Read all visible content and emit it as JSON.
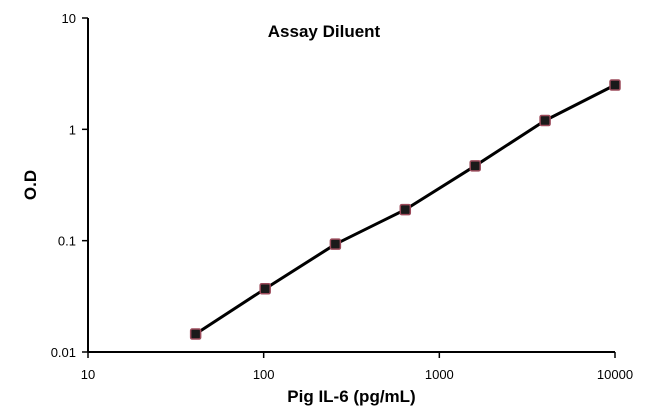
{
  "chart_data": {
    "type": "line",
    "title": "Assay Diluent",
    "xlabel": "Pig IL-6 (pg/mL)",
    "ylabel": "O.D",
    "x_scale": "log",
    "y_scale": "log",
    "xlim": [
      10,
      10000
    ],
    "ylim": [
      0.01,
      10
    ],
    "x_ticks": [
      "10",
      "100",
      "1000",
      "10000"
    ],
    "y_ticks": [
      "0.01",
      "0.1",
      "1",
      "10"
    ],
    "grid": false,
    "series": [
      {
        "x": [
          41,
          102,
          256,
          640,
          1600,
          4000,
          10000
        ],
        "y": [
          0.0145,
          0.037,
          0.093,
          0.19,
          0.47,
          1.2,
          2.5
        ]
      }
    ],
    "line_color": "#000000",
    "marker_color": "#1a1a1a",
    "marker_edge_color": "#9b4a5a"
  }
}
